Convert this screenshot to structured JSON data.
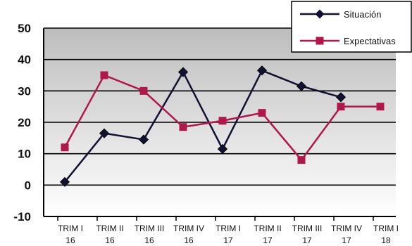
{
  "chart_data": {
    "type": "line",
    "categories": [
      [
        "TRIM I",
        "16"
      ],
      [
        "TRIM II",
        "16"
      ],
      [
        "TRIM III",
        "16"
      ],
      [
        "TRIM IV",
        "16"
      ],
      [
        "TRIM I",
        "17"
      ],
      [
        "TRIM II",
        "17"
      ],
      [
        "TRIM III",
        "17"
      ],
      [
        "TRIM IV",
        "17"
      ],
      [
        "TRIM I",
        "18"
      ]
    ],
    "series": [
      {
        "name": "Situación",
        "color": "#111133",
        "marker": "diamond",
        "values": [
          1,
          16.5,
          14.5,
          36,
          11.5,
          36.5,
          31.5,
          28,
          null
        ]
      },
      {
        "name": "Expectativas",
        "color": "#b0174a",
        "marker": "square",
        "values": [
          12,
          35,
          30,
          18.5,
          20.5,
          23,
          8,
          25,
          25
        ]
      }
    ],
    "ylim": [
      -10,
      50
    ],
    "yticks": [
      -10,
      0,
      10,
      20,
      30,
      40,
      50
    ],
    "grid": true,
    "legend": "top-right",
    "plot_background": "gradient-gray"
  }
}
